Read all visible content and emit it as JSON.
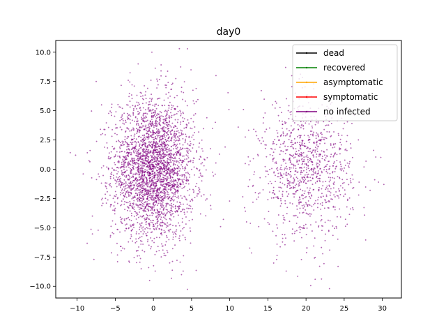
{
  "chart_data": {
    "type": "scatter",
    "title": "day0",
    "xlabel": "",
    "ylabel": "",
    "xlim": [
      -12.8,
      32.5
    ],
    "ylim": [
      -11.0,
      11.0
    ],
    "xticks": [
      -10,
      -5,
      0,
      5,
      10,
      15,
      20,
      25,
      30
    ],
    "xtick_labels": [
      "−10",
      "−5",
      "0",
      "5",
      "10",
      "15",
      "20",
      "25",
      "30"
    ],
    "yticks": [
      -10.0,
      -7.5,
      -5.0,
      -2.5,
      0.0,
      2.5,
      5.0,
      7.5,
      10.0
    ],
    "ytick_labels": [
      "−10.0",
      "−7.5",
      "−5.0",
      "−2.5",
      "0.0",
      "2.5",
      "5.0",
      "7.5",
      "10.0"
    ],
    "grid": false,
    "legend_position": "top-right",
    "series": [
      {
        "name": "dead",
        "color": "#000000",
        "points": []
      },
      {
        "name": "recovered",
        "color": "#008000",
        "points": []
      },
      {
        "name": "asymptomatic",
        "color": "#ffa500",
        "points": []
      },
      {
        "name": "symptomatic",
        "color": "#ff0000",
        "points": []
      },
      {
        "name": "no infected",
        "color": "#800080",
        "clusters": [
          {
            "center": [
              0,
              0
            ],
            "std": [
              2.7,
              3.0
            ],
            "count": 3000
          },
          {
            "center": [
              20,
              0
            ],
            "std": [
              3.0,
              2.9
            ],
            "count": 1000
          }
        ],
        "points": [
          [
            -10.2,
            1.2
          ],
          [
            -9.2,
            -0.4
          ],
          [
            -8.3,
            1.6
          ],
          [
            -8.0,
            -4.0
          ],
          [
            -7.8,
            -7.7
          ],
          [
            -7.5,
            7.5
          ],
          [
            -6.8,
            5.5
          ],
          [
            -6.2,
            -1.5
          ],
          [
            -5.5,
            4.6
          ],
          [
            -5.2,
            -5.5
          ],
          [
            -4.7,
            -7.9
          ],
          [
            -4.3,
            5.3
          ],
          [
            -3.8,
            -6.8
          ],
          [
            -3.3,
            7.6
          ],
          [
            -2.8,
            -3.2
          ],
          [
            -2.0,
            9.0
          ],
          [
            -1.6,
            -8.5
          ],
          [
            -1.0,
            4.1
          ],
          [
            -0.5,
            -9.5
          ],
          [
            -0.2,
            10.0
          ],
          [
            0.4,
            -2.2
          ],
          [
            1.0,
            8.4
          ],
          [
            1.4,
            -7.2
          ],
          [
            2.0,
            3.3
          ],
          [
            2.6,
            -5.8
          ],
          [
            3.1,
            6.3
          ],
          [
            3.4,
            10.3
          ],
          [
            3.9,
            -8.7
          ],
          [
            4.4,
            1.8
          ],
          [
            5.1,
            -4.3
          ],
          [
            5.6,
            6.9
          ],
          [
            6.3,
            -0.6
          ],
          [
            7.0,
            4.4
          ],
          [
            7.5,
            -3.1
          ],
          [
            8.2,
            8.0
          ],
          [
            8.8,
            -4.9
          ],
          [
            9.4,
            1.9
          ],
          [
            9.9,
            5.1
          ],
          [
            11.8,
            5.1
          ],
          [
            12.2,
            -4.5
          ],
          [
            13.1,
            0.9
          ],
          [
            13.8,
            -4.9
          ],
          [
            14.4,
            2.4
          ],
          [
            15.0,
            -2.6
          ],
          [
            15.6,
            5.5
          ],
          [
            16.2,
            -6.4
          ],
          [
            16.9,
            3.5
          ],
          [
            17.4,
            -8.7
          ],
          [
            18.0,
            -1.6
          ],
          [
            18.6,
            6.5
          ],
          [
            19.2,
            -5.4
          ],
          [
            19.8,
            2.2
          ],
          [
            20.5,
            -3.8
          ],
          [
            21.0,
            7.3
          ],
          [
            21.2,
            -9.4
          ],
          [
            21.8,
            0.7
          ],
          [
            22.5,
            -6.1
          ],
          [
            23.0,
            4.7
          ],
          [
            23.6,
            -1.2
          ],
          [
            24.2,
            -8.3
          ],
          [
            24.7,
            2.9
          ],
          [
            25.4,
            -4.7
          ],
          [
            26.1,
            1.0
          ],
          [
            26.9,
            -2.2
          ],
          [
            27.6,
            0.2
          ],
          [
            28.4,
            -1.8
          ],
          [
            29.0,
            -0.9
          ],
          [
            29.5,
            -1.1
          ],
          [
            30.2,
            -1.3
          ]
        ]
      }
    ]
  }
}
